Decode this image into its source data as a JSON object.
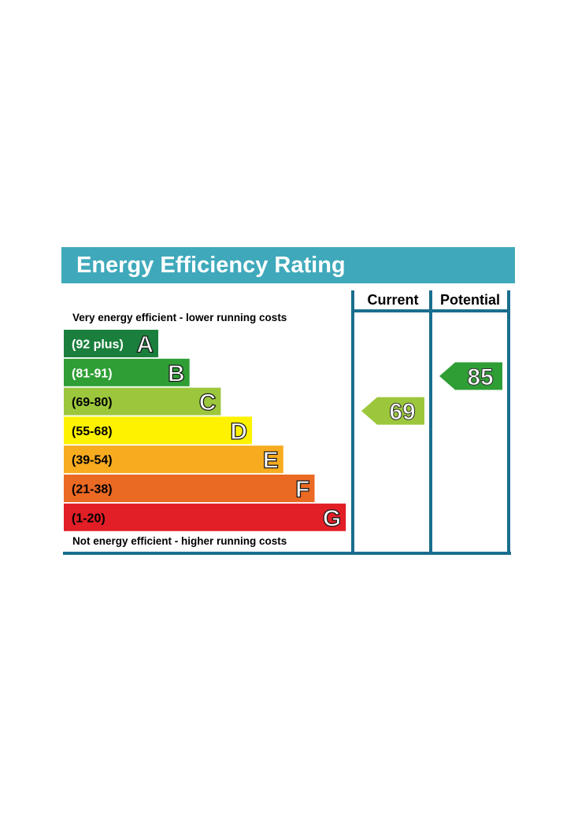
{
  "chart_data": {
    "type": "bar",
    "title": "Energy Efficiency Rating",
    "top_note": "Very energy efficient - lower running costs",
    "bottom_note": "Not energy efficient - higher running costs",
    "columns": [
      "Current",
      "Potential"
    ],
    "bands": [
      {
        "letter": "A",
        "range": "(92 plus)",
        "min": 92,
        "max": 100,
        "color": "#1a7f3c",
        "range_text_color": "#ffffff"
      },
      {
        "letter": "B",
        "range": "(81-91)",
        "min": 81,
        "max": 91,
        "color": "#2e9e35",
        "range_text_color": "#ffffff"
      },
      {
        "letter": "C",
        "range": "(69-80)",
        "min": 69,
        "max": 80,
        "color": "#9cc73c",
        "range_text_color": "#000000"
      },
      {
        "letter": "D",
        "range": "(55-68)",
        "min": 55,
        "max": 68,
        "color": "#fff200",
        "range_text_color": "#000000"
      },
      {
        "letter": "E",
        "range": "(39-54)",
        "min": 39,
        "max": 54,
        "color": "#f7ab1f",
        "range_text_color": "#000000"
      },
      {
        "letter": "F",
        "range": "(21-38)",
        "min": 21,
        "max": 38,
        "color": "#ea6923",
        "range_text_color": "#000000"
      },
      {
        "letter": "G",
        "range": "(1-20)",
        "min": 1,
        "max": 20,
        "color": "#e21e26",
        "range_text_color": "#000000"
      }
    ],
    "ratings": [
      {
        "name": "Current",
        "value": 69,
        "band": "C",
        "color": "#9cc73c"
      },
      {
        "name": "Potential",
        "value": 85,
        "band": "B",
        "color": "#2e9e35"
      }
    ],
    "title_bar_color": "#3fa9bb",
    "frame_color": "#1a6e8e"
  }
}
